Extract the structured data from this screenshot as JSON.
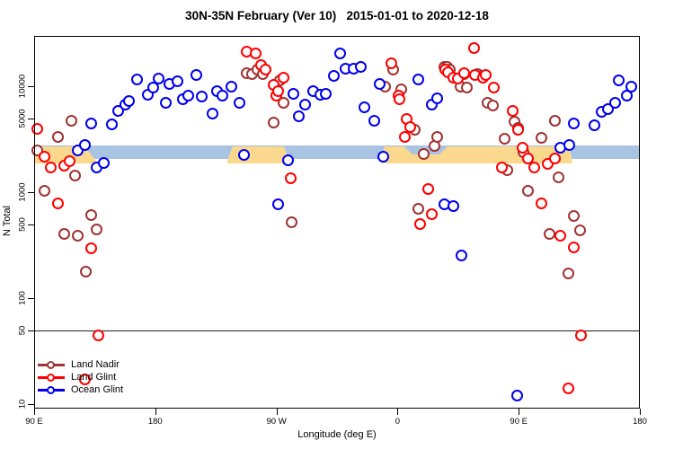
{
  "title": "30N-35N February (Ver 10)   2015-01-01 to 2020-12-18",
  "chart_data": {
    "type": "scatter",
    "title": "30N-35N February (Ver 10)   2015-01-01 to 2020-12-18",
    "xlabel": "Longitude (deg E)",
    "ylabel": "N Total",
    "x_axis": {
      "note": "x = degrees eastward along axis starting at 90E; axis wraps 90E>180>90W>0>90E>180",
      "range": [
        0,
        450
      ],
      "ticks": [
        {
          "pos": 0,
          "label": "90 E"
        },
        {
          "pos": 90,
          "label": "180"
        },
        {
          "pos": 180,
          "label": "90 W"
        },
        {
          "pos": 270,
          "label": "0"
        },
        {
          "pos": 360,
          "label": "90 E"
        },
        {
          "pos": 450,
          "label": "180"
        }
      ]
    },
    "y_axis": {
      "scale": "log10",
      "range": [
        9,
        30000
      ],
      "ticks": [
        10,
        50,
        100,
        500,
        1000,
        5000,
        10000
      ],
      "reference_line_n": 50
    },
    "bands": {
      "ocean_band": {
        "color": "#A9C3E2",
        "x_range": [
          0,
          450
        ],
        "n_range": [
          2050,
          2750
        ]
      },
      "land_band_color": "#FAD98E",
      "land_segments": [
        {
          "x_range": [
            0,
            48
          ],
          "n_range": [
            1850,
            2700
          ]
        },
        {
          "x_range": [
            143,
            190
          ],
          "n_range": [
            1850,
            2700
          ]
        },
        {
          "x_range": [
            258,
            400
          ],
          "n_range": [
            1850,
            2700
          ]
        }
      ],
      "ocean_overlap_notch": {
        "x_range": [
          274,
          308
        ],
        "n_range": [
          2250,
          2750
        ]
      }
    },
    "legend": {
      "position": "bottom-left"
    },
    "series": [
      {
        "name": "Land Nadir",
        "color": "#A03333",
        "points": [
          [
            3,
            2450
          ],
          [
            8,
            1020
          ],
          [
            18,
            3300
          ],
          [
            28,
            4670
          ],
          [
            31,
            1420
          ],
          [
            23,
            400
          ],
          [
            33,
            380
          ],
          [
            39,
            175
          ],
          [
            43,
            600
          ],
          [
            47,
            440
          ],
          [
            158,
            13100
          ],
          [
            162,
            12800
          ],
          [
            166,
            14100
          ],
          [
            170,
            12800
          ],
          [
            183,
            11200
          ],
          [
            186,
            6900
          ],
          [
            178,
            4500
          ],
          [
            192,
            510
          ],
          [
            261,
            9800
          ],
          [
            267,
            14100
          ],
          [
            273,
            9200
          ],
          [
            283,
            3850
          ],
          [
            286,
            690
          ],
          [
            290,
            2270
          ],
          [
            298,
            2710
          ],
          [
            300,
            3280
          ],
          [
            305,
            15000
          ],
          [
            307,
            15000
          ],
          [
            309,
            14100
          ],
          [
            317,
            9800
          ],
          [
            320,
            12800
          ],
          [
            322,
            9600
          ],
          [
            330,
            12800
          ],
          [
            333,
            12400
          ],
          [
            337,
            6900
          ],
          [
            341,
            6500
          ],
          [
            350,
            3160
          ],
          [
            352,
            1590
          ],
          [
            357,
            4600
          ],
          [
            360,
            4000
          ],
          [
            364,
            2360
          ],
          [
            367,
            1020
          ],
          [
            377,
            3220
          ],
          [
            383,
            400
          ],
          [
            387,
            4670
          ],
          [
            390,
            1360
          ],
          [
            397,
            170
          ],
          [
            401,
            590
          ],
          [
            406,
            430
          ]
        ]
      },
      {
        "name": "Land Glint",
        "color": "#FF0000",
        "points": [
          [
            3,
            3900
          ],
          [
            8,
            2140
          ],
          [
            13,
            1690
          ],
          [
            23,
            1760
          ],
          [
            27,
            1950
          ],
          [
            18,
            780
          ],
          [
            43,
            290
          ],
          [
            38,
            17
          ],
          [
            48,
            44
          ],
          [
            158,
            21100
          ],
          [
            165,
            20200
          ],
          [
            169,
            15700
          ],
          [
            172,
            14100
          ],
          [
            178,
            10200
          ],
          [
            180,
            8070
          ],
          [
            182,
            8900
          ],
          [
            186,
            11900
          ],
          [
            191,
            1330
          ],
          [
            266,
            16400
          ],
          [
            271,
            8070
          ],
          [
            272,
            7460
          ],
          [
            277,
            4850
          ],
          [
            280,
            4060
          ],
          [
            276,
            3280
          ],
          [
            287,
            490
          ],
          [
            293,
            1060
          ],
          [
            296,
            610
          ],
          [
            306,
            14100
          ],
          [
            308,
            13300
          ],
          [
            312,
            11900
          ],
          [
            315,
            11700
          ],
          [
            320,
            13100
          ],
          [
            327,
            22600
          ],
          [
            328,
            12600
          ],
          [
            334,
            11900
          ],
          [
            336,
            12600
          ],
          [
            342,
            9600
          ],
          [
            348,
            1690
          ],
          [
            356,
            5800
          ],
          [
            360,
            3850
          ],
          [
            363,
            2610
          ],
          [
            367,
            2060
          ],
          [
            372,
            1690
          ],
          [
            377,
            780
          ],
          [
            382,
            1830
          ],
          [
            387,
            2060
          ],
          [
            391,
            380
          ],
          [
            401,
            300
          ],
          [
            397,
            14
          ],
          [
            407,
            44
          ]
        ]
      },
      {
        "name": "Ocean Glint",
        "color": "#0000EE",
        "points": [
          [
            33,
            2450
          ],
          [
            38,
            2760
          ],
          [
            43,
            4400
          ],
          [
            47,
            1690
          ],
          [
            52,
            1870
          ],
          [
            58,
            4300
          ],
          [
            63,
            5800
          ],
          [
            68,
            6640
          ],
          [
            71,
            7180
          ],
          [
            77,
            11500
          ],
          [
            85,
            8220
          ],
          [
            89,
            9610
          ],
          [
            93,
            11700
          ],
          [
            98,
            6900
          ],
          [
            101,
            10400
          ],
          [
            107,
            11000
          ],
          [
            111,
            7460
          ],
          [
            115,
            8070
          ],
          [
            121,
            12600
          ],
          [
            125,
            7910
          ],
          [
            133,
            5460
          ],
          [
            136,
            8900
          ],
          [
            140,
            8070
          ],
          [
            147,
            9800
          ],
          [
            153,
            6900
          ],
          [
            156,
            2230
          ],
          [
            182,
            760
          ],
          [
            189,
            1990
          ],
          [
            193,
            8400
          ],
          [
            197,
            5140
          ],
          [
            202,
            6640
          ],
          [
            208,
            8900
          ],
          [
            213,
            8200
          ],
          [
            217,
            8400
          ],
          [
            223,
            12400
          ],
          [
            228,
            20200
          ],
          [
            232,
            14400
          ],
          [
            238,
            14400
          ],
          [
            243,
            15000
          ],
          [
            246,
            6270
          ],
          [
            253,
            4670
          ],
          [
            257,
            10400
          ],
          [
            260,
            2140
          ],
          [
            286,
            11500
          ],
          [
            296,
            6640
          ],
          [
            300,
            7600
          ],
          [
            305,
            760
          ],
          [
            312,
            730
          ],
          [
            318,
            250
          ],
          [
            359,
            12
          ],
          [
            391,
            2610
          ],
          [
            398,
            2760
          ],
          [
            401,
            4400
          ],
          [
            417,
            4240
          ],
          [
            422,
            5700
          ],
          [
            427,
            6000
          ],
          [
            432,
            6900
          ],
          [
            435,
            11200
          ],
          [
            441,
            8070
          ],
          [
            444,
            9800
          ]
        ]
      }
    ]
  }
}
